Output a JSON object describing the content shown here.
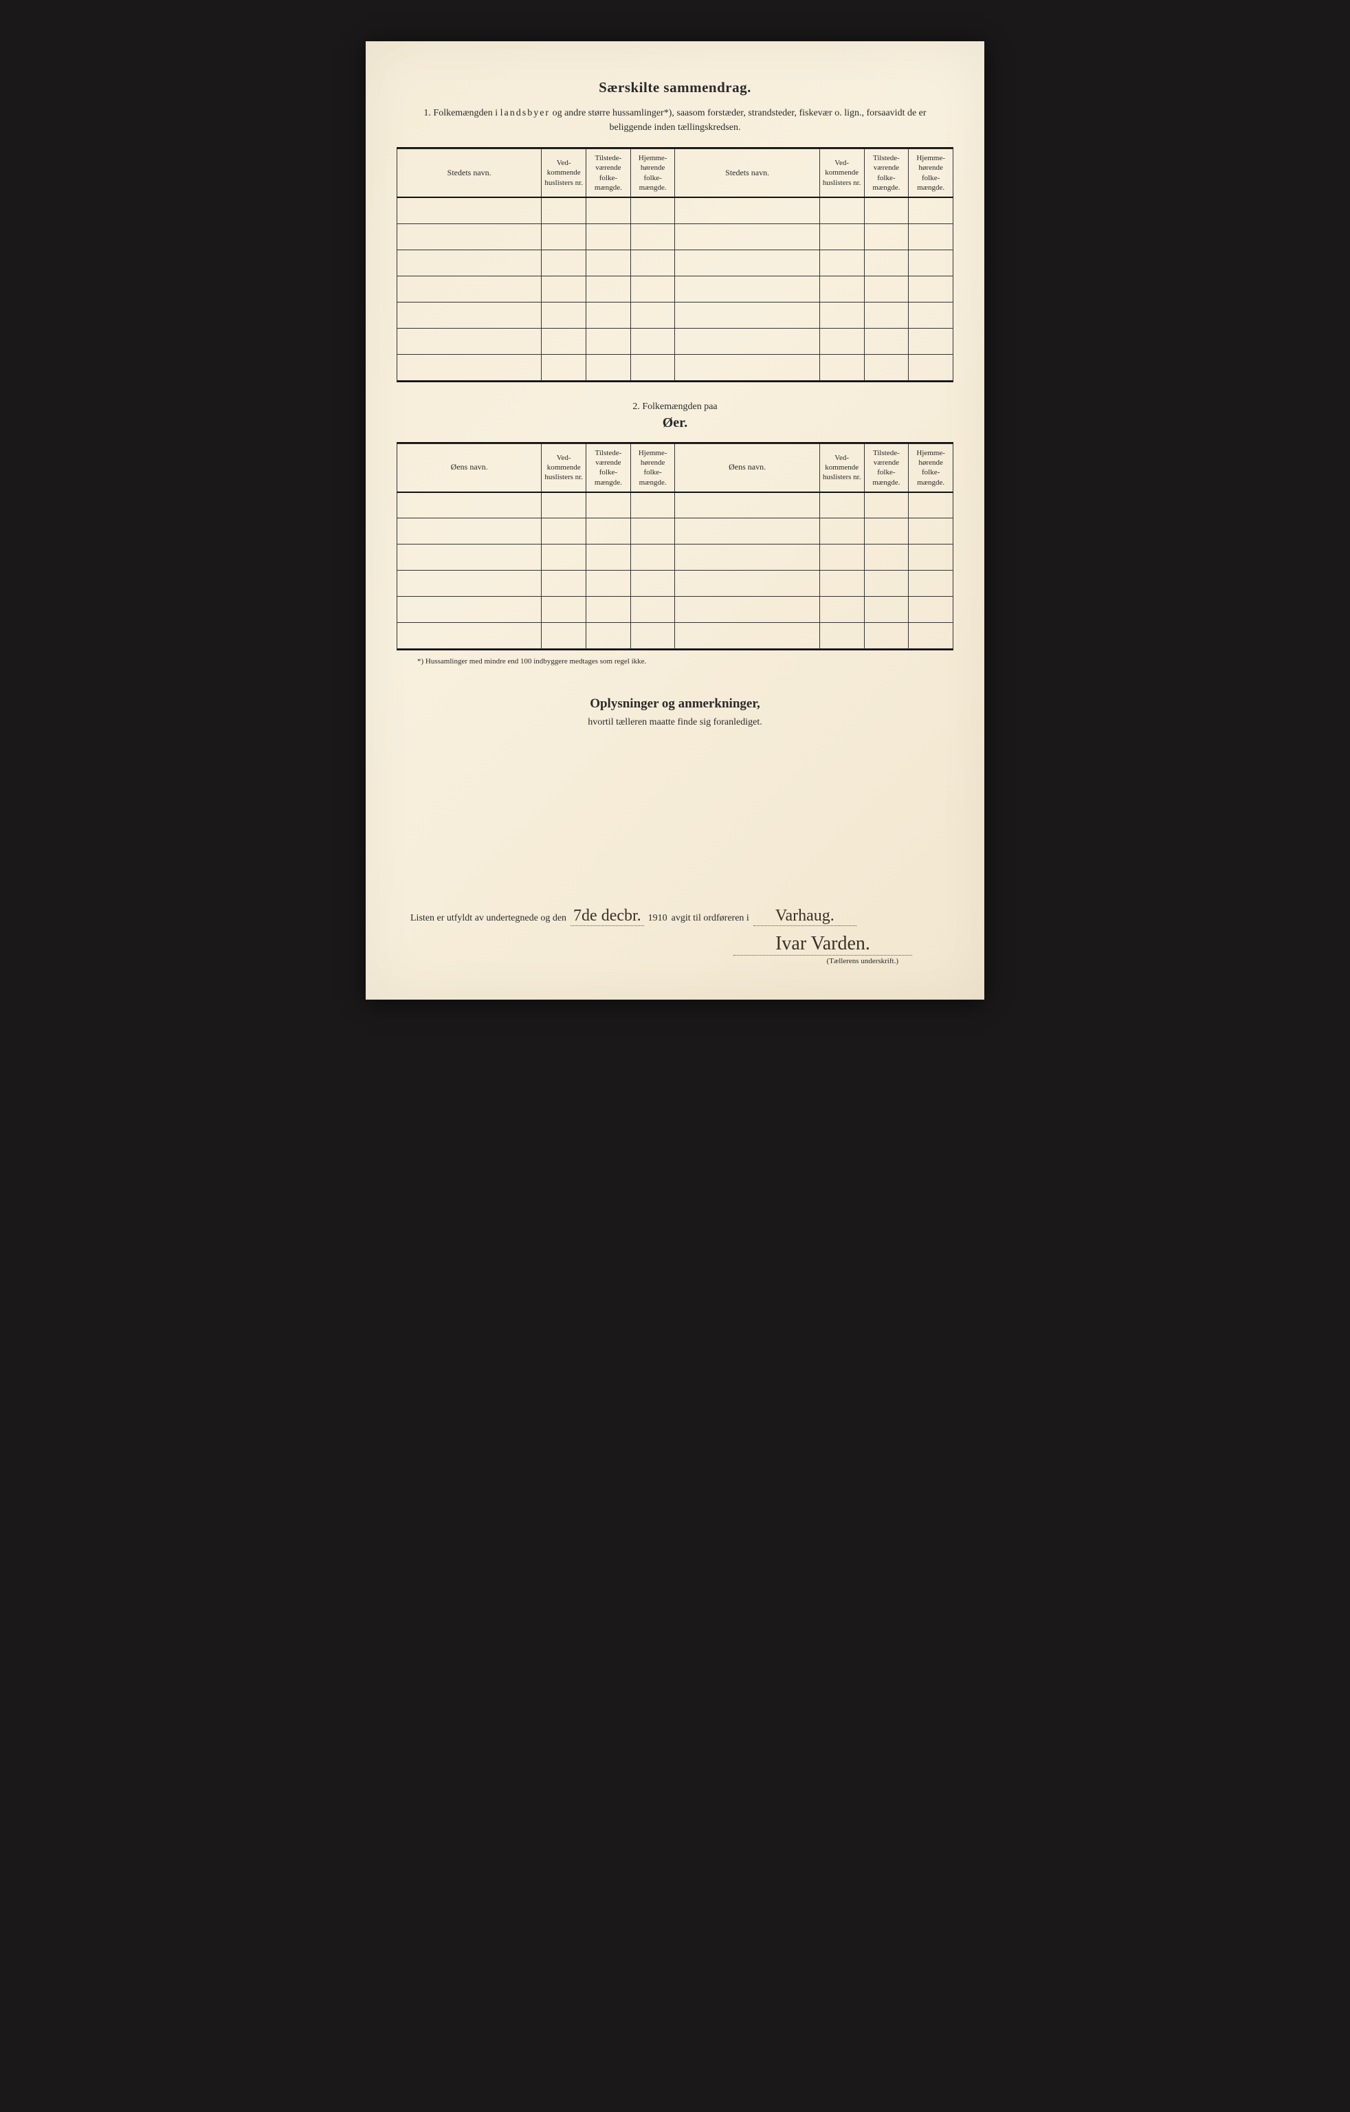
{
  "title": "Særskilte sammendrag.",
  "section1_intro_pre": "1.  Folkemængden i ",
  "section1_intro_spaced": "landsbyer",
  "section1_intro_post": " og andre større hussamlinger*), saasom forstæder, strandsteder, fiskevær o. lign., forsaavidt de er beliggende inden tællingskredsen.",
  "headers": {
    "stedets_navn": "Stedets navn.",
    "oens_navn": "Øens navn.",
    "vedkommende": "Ved-\nkommende\nhuslisters\nnr.",
    "tilstede": "Tilstede-\nværende\nfolke-\nmængde.",
    "hjemme": "Hjemme-\nhørende\nfolke-\nmængde."
  },
  "section2_label": "2.   Folkemængden paa",
  "section2_title": "Øer.",
  "footnote": "*) Hussamlinger med mindre end 100 indbyggere medtages som regel ikke.",
  "oplysninger_title": "Oplysninger og anmerkninger,",
  "oplysninger_sub": "hvortil tælleren maatte finde sig foranlediget.",
  "signature": {
    "pre": "Listen er utfyldt av undertegnede og den",
    "date_hand": "7de decbr.",
    "year": "1910",
    "mid": "avgit til ordføreren i",
    "place_hand": "Varhaug.",
    "signer": "Ivar Varden.",
    "caption": "(Tællerens underskrift.)"
  },
  "table_rows": 7,
  "table2_rows": 6
}
